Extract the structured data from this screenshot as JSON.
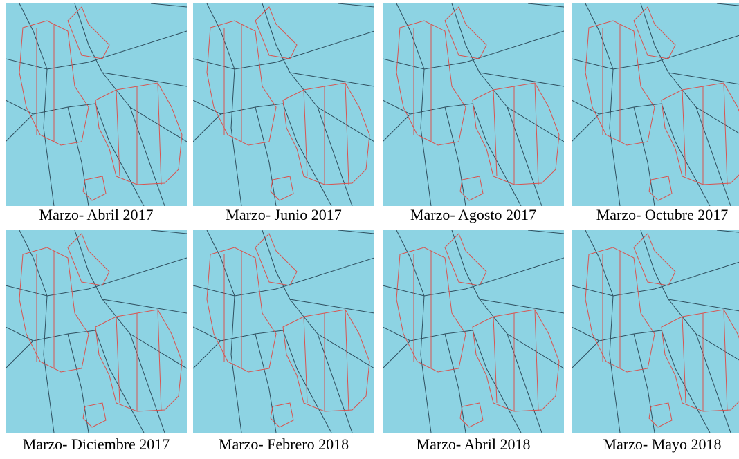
{
  "panels": [
    {
      "caption": "Marzo- Abril 2017"
    },
    {
      "caption": "Marzo- Junio 2017"
    },
    {
      "caption": "Marzo- Agosto 2017"
    },
    {
      "caption": "Marzo- Octubre 2017"
    },
    {
      "caption": "Marzo- Diciembre 2017"
    },
    {
      "caption": "Marzo- Febrero 2018"
    },
    {
      "caption": "Marzo- Abril 2018"
    },
    {
      "caption": "Marzo- Mayo 2018"
    }
  ]
}
